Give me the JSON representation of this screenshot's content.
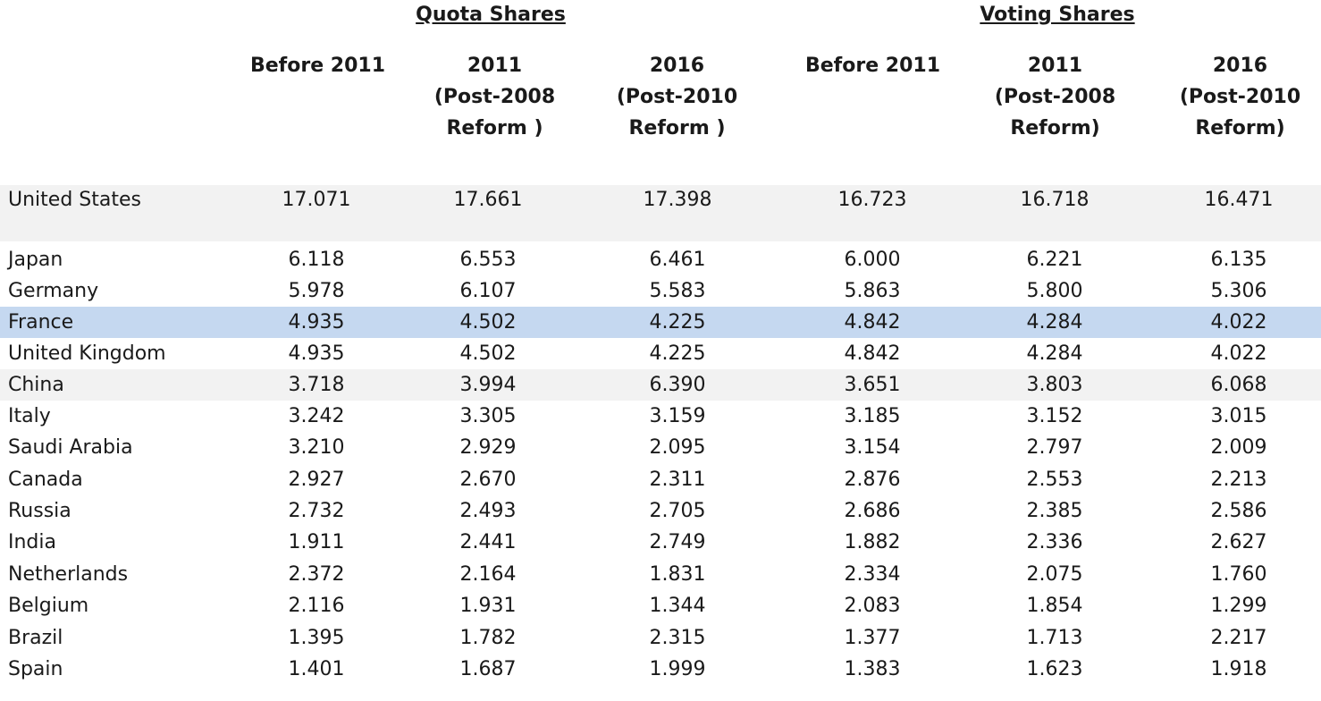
{
  "groups": {
    "quota": "Quota Shares",
    "voting": "Voting Shares"
  },
  "columns": [
    "Before 2011",
    "2011\n(Post-2008\nReform )",
    "2016\n(Post-2010\nReform )",
    "Before 2011",
    "2011\n(Post-2008\nReform)",
    "2016\n(Post-2010\nReform)"
  ],
  "rows": [
    {
      "country": "United States",
      "values": [
        "17.071",
        "17.661",
        "17.398",
        "16.723",
        "16.718",
        "16.471"
      ]
    },
    {
      "country": "Japan",
      "values": [
        "6.118",
        "6.553",
        "6.461",
        "6.000",
        "6.221",
        "6.135"
      ]
    },
    {
      "country": "Germany",
      "values": [
        "5.978",
        "6.107",
        "5.583",
        "5.863",
        "5.800",
        "5.306"
      ]
    },
    {
      "country": "France",
      "values": [
        "4.935",
        "4.502",
        "4.225",
        "4.842",
        "4.284",
        "4.022"
      ]
    },
    {
      "country": "United Kingdom",
      "values": [
        "4.935",
        "4.502",
        "4.225",
        "4.842",
        "4.284",
        "4.022"
      ]
    },
    {
      "country": "China",
      "values": [
        "3.718",
        "3.994",
        "6.390",
        "3.651",
        "3.803",
        "6.068"
      ]
    },
    {
      "country": "Italy",
      "values": [
        "3.242",
        "3.305",
        "3.159",
        "3.185",
        "3.152",
        "3.015"
      ]
    },
    {
      "country": "Saudi Arabia",
      "values": [
        "3.210",
        "2.929",
        "2.095",
        "3.154",
        "2.797",
        "2.009"
      ]
    },
    {
      "country": "Canada",
      "values": [
        "2.927",
        "2.670",
        "2.311",
        "2.876",
        "2.553",
        "2.213"
      ]
    },
    {
      "country": "Russia",
      "values": [
        "2.732",
        "2.493",
        "2.705",
        "2.686",
        "2.385",
        "2.586"
      ]
    },
    {
      "country": "India",
      "values": [
        "1.911",
        "2.441",
        "2.749",
        "1.882",
        "2.336",
        "2.627"
      ]
    },
    {
      "country": "Netherlands",
      "values": [
        "2.372",
        "2.164",
        "1.831",
        "2.334",
        "2.075",
        "1.760"
      ]
    },
    {
      "country": "Belgium",
      "values": [
        "2.116",
        "1.931",
        "1.344",
        "2.083",
        "1.854",
        "1.299"
      ]
    },
    {
      "country": "Brazil",
      "values": [
        "1.395",
        "1.782",
        "2.315",
        "1.377",
        "1.713",
        "2.217"
      ]
    },
    {
      "country": "Spain",
      "values": [
        "1.401",
        "1.687",
        "1.999",
        "1.383",
        "1.623",
        "1.918"
      ]
    }
  ]
}
